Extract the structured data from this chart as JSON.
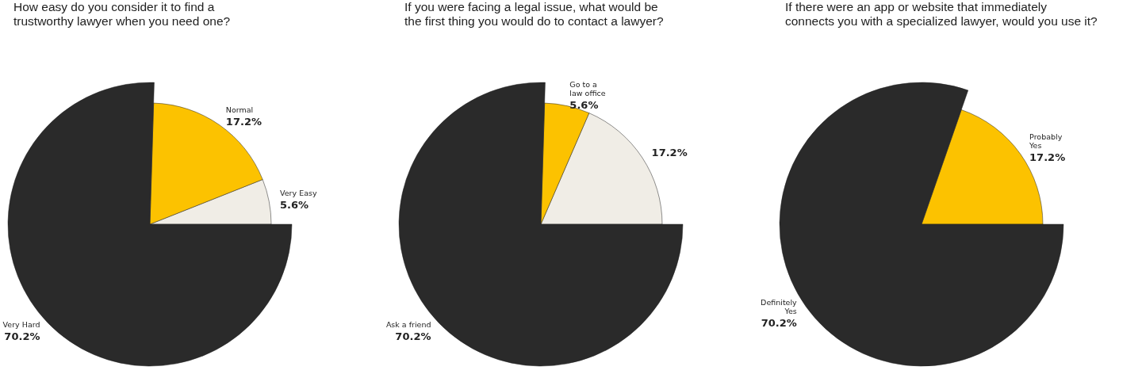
{
  "chart_data": [
    {
      "type": "pie",
      "title": "How easy do you consider it to find a\ntrustworthy lawyer when you need one?",
      "categories": [
        "Very Easy",
        "Normal",
        "Very Hard"
      ],
      "values": [
        5.6,
        17.2,
        70.2
      ],
      "value_labels": [
        "5.6%",
        "17.2%",
        "70.2%"
      ],
      "colors": [
        "#f0ede6",
        "#fcc200",
        "#2a2a2a"
      ]
    },
    {
      "type": "pie",
      "title": "If you were facing a legal issue, what would be\nthe first thing you would do to contact a lawyer?",
      "categories": [
        null,
        "Go to a\nlaw office",
        "Ask a friend"
      ],
      "values": [
        17.2,
        5.6,
        70.2
      ],
      "value_labels": [
        "17.2%",
        "5.6%",
        "70.2%"
      ],
      "colors": [
        "#f0ede6",
        "#fcc200",
        "#2a2a2a"
      ]
    },
    {
      "type": "pie",
      "title": "If there were an app or website that immediately\nconnects you with a specialized lawyer, would you use it?",
      "categories": [
        "Probably\nYes",
        "Definitely\nYes"
      ],
      "values": [
        17.2,
        70.2
      ],
      "value_labels": [
        "17.2%",
        "70.2%"
      ],
      "colors": [
        "#fcc200",
        "#2a2a2a"
      ]
    }
  ]
}
